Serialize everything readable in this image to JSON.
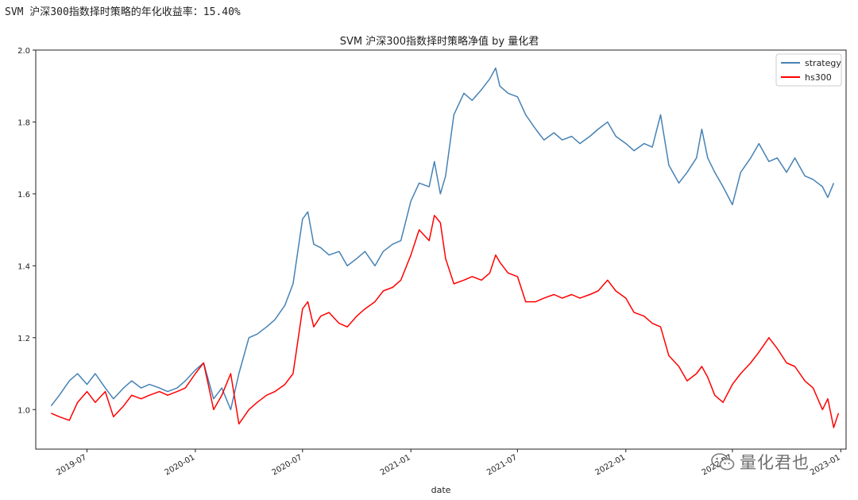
{
  "headline": "SVM 沪深300指数择时策略的年化收益率：15.40%",
  "watermark": {
    "text": "量化君也",
    "icon": "wechat-icon"
  },
  "chart_data": {
    "type": "line",
    "title": "SVM 沪深300指数择时策略净值  by 量化君",
    "xlabel": "date",
    "ylabel": "",
    "xlim": [
      "2019-04-05",
      "2023-01-10"
    ],
    "ylim": [
      0.89,
      2.0
    ],
    "yticks": [
      1.0,
      1.2,
      1.4,
      1.6,
      1.8,
      2.0
    ],
    "ytick_labels": [
      "1.0",
      "1.2",
      "1.4",
      "1.6",
      "1.8",
      "2.0"
    ],
    "xticks": [
      "2019-07-01",
      "2020-01-01",
      "2020-07-01",
      "2021-01-01",
      "2021-07-01",
      "2022-01-01",
      "2022-07-01",
      "2023-01-01"
    ],
    "xtick_labels": [
      "2019-07",
      "2020-01",
      "2020-07",
      "2021-01",
      "2021-07",
      "2022-01",
      "2022-07",
      "2023-01"
    ],
    "grid": false,
    "legend": "top-right",
    "series": [
      {
        "name": "strategy",
        "color": "#4682b4",
        "points": [
          [
            "2019-05-01",
            1.01
          ],
          [
            "2019-05-15",
            1.04
          ],
          [
            "2019-06-01",
            1.08
          ],
          [
            "2019-06-15",
            1.1
          ],
          [
            "2019-07-01",
            1.07
          ],
          [
            "2019-07-15",
            1.1
          ],
          [
            "2019-08-01",
            1.06
          ],
          [
            "2019-08-15",
            1.03
          ],
          [
            "2019-09-01",
            1.06
          ],
          [
            "2019-09-15",
            1.08
          ],
          [
            "2019-10-01",
            1.06
          ],
          [
            "2019-10-15",
            1.07
          ],
          [
            "2019-11-01",
            1.06
          ],
          [
            "2019-11-15",
            1.05
          ],
          [
            "2019-12-01",
            1.06
          ],
          [
            "2019-12-15",
            1.08
          ],
          [
            "2020-01-01",
            1.11
          ],
          [
            "2020-01-15",
            1.13
          ],
          [
            "2020-02-01",
            1.03
          ],
          [
            "2020-02-15",
            1.06
          ],
          [
            "2020-03-01",
            1.0
          ],
          [
            "2020-03-15",
            1.1
          ],
          [
            "2020-04-01",
            1.2
          ],
          [
            "2020-04-15",
            1.21
          ],
          [
            "2020-05-01",
            1.23
          ],
          [
            "2020-05-15",
            1.25
          ],
          [
            "2020-06-01",
            1.29
          ],
          [
            "2020-06-15",
            1.35
          ],
          [
            "2020-07-01",
            1.53
          ],
          [
            "2020-07-10",
            1.55
          ],
          [
            "2020-07-20",
            1.46
          ],
          [
            "2020-08-01",
            1.45
          ],
          [
            "2020-08-15",
            1.43
          ],
          [
            "2020-09-01",
            1.44
          ],
          [
            "2020-09-15",
            1.4
          ],
          [
            "2020-10-01",
            1.42
          ],
          [
            "2020-10-15",
            1.44
          ],
          [
            "2020-11-01",
            1.4
          ],
          [
            "2020-11-15",
            1.44
          ],
          [
            "2020-12-01",
            1.46
          ],
          [
            "2020-12-15",
            1.47
          ],
          [
            "2021-01-01",
            1.58
          ],
          [
            "2021-01-15",
            1.63
          ],
          [
            "2021-02-01",
            1.62
          ],
          [
            "2021-02-10",
            1.69
          ],
          [
            "2021-02-20",
            1.6
          ],
          [
            "2021-03-01",
            1.65
          ],
          [
            "2021-03-15",
            1.82
          ],
          [
            "2021-04-01",
            1.88
          ],
          [
            "2021-04-15",
            1.86
          ],
          [
            "2021-05-01",
            1.89
          ],
          [
            "2021-05-15",
            1.92
          ],
          [
            "2021-05-25",
            1.95
          ],
          [
            "2021-06-01",
            1.9
          ],
          [
            "2021-06-15",
            1.88
          ],
          [
            "2021-07-01",
            1.87
          ],
          [
            "2021-07-15",
            1.82
          ],
          [
            "2021-08-01",
            1.78
          ],
          [
            "2021-08-15",
            1.75
          ],
          [
            "2021-09-01",
            1.77
          ],
          [
            "2021-09-15",
            1.75
          ],
          [
            "2021-10-01",
            1.76
          ],
          [
            "2021-10-15",
            1.74
          ],
          [
            "2021-11-01",
            1.76
          ],
          [
            "2021-11-15",
            1.78
          ],
          [
            "2021-12-01",
            1.8
          ],
          [
            "2021-12-15",
            1.76
          ],
          [
            "2022-01-01",
            1.74
          ],
          [
            "2022-01-15",
            1.72
          ],
          [
            "2022-02-01",
            1.74
          ],
          [
            "2022-02-15",
            1.73
          ],
          [
            "2022-03-01",
            1.82
          ],
          [
            "2022-03-15",
            1.68
          ],
          [
            "2022-04-01",
            1.63
          ],
          [
            "2022-04-15",
            1.66
          ],
          [
            "2022-05-01",
            1.7
          ],
          [
            "2022-05-10",
            1.78
          ],
          [
            "2022-05-20",
            1.7
          ],
          [
            "2022-06-01",
            1.66
          ],
          [
            "2022-06-15",
            1.62
          ],
          [
            "2022-07-01",
            1.57
          ],
          [
            "2022-07-15",
            1.66
          ],
          [
            "2022-08-01",
            1.7
          ],
          [
            "2022-08-15",
            1.74
          ],
          [
            "2022-09-01",
            1.69
          ],
          [
            "2022-09-15",
            1.7
          ],
          [
            "2022-10-01",
            1.66
          ],
          [
            "2022-10-15",
            1.7
          ],
          [
            "2022-11-01",
            1.65
          ],
          [
            "2022-11-15",
            1.64
          ],
          [
            "2022-12-01",
            1.62
          ],
          [
            "2022-12-10",
            1.59
          ],
          [
            "2022-12-20",
            1.63
          ]
        ]
      },
      {
        "name": "hs300",
        "color": "#ff0000",
        "points": [
          [
            "2019-05-01",
            0.99
          ],
          [
            "2019-05-15",
            0.98
          ],
          [
            "2019-06-01",
            0.97
          ],
          [
            "2019-06-15",
            1.02
          ],
          [
            "2019-07-01",
            1.05
          ],
          [
            "2019-07-15",
            1.02
          ],
          [
            "2019-08-01",
            1.05
          ],
          [
            "2019-08-15",
            0.98
          ],
          [
            "2019-09-01",
            1.01
          ],
          [
            "2019-09-15",
            1.04
          ],
          [
            "2019-10-01",
            1.03
          ],
          [
            "2019-10-15",
            1.04
          ],
          [
            "2019-11-01",
            1.05
          ],
          [
            "2019-11-15",
            1.04
          ],
          [
            "2019-12-01",
            1.05
          ],
          [
            "2019-12-15",
            1.06
          ],
          [
            "2020-01-01",
            1.1
          ],
          [
            "2020-01-15",
            1.13
          ],
          [
            "2020-02-01",
            1.0
          ],
          [
            "2020-02-15",
            1.04
          ],
          [
            "2020-03-01",
            1.1
          ],
          [
            "2020-03-15",
            0.96
          ],
          [
            "2020-04-01",
            1.0
          ],
          [
            "2020-04-15",
            1.02
          ],
          [
            "2020-05-01",
            1.04
          ],
          [
            "2020-05-15",
            1.05
          ],
          [
            "2020-06-01",
            1.07
          ],
          [
            "2020-06-15",
            1.1
          ],
          [
            "2020-07-01",
            1.28
          ],
          [
            "2020-07-10",
            1.3
          ],
          [
            "2020-07-20",
            1.23
          ],
          [
            "2020-08-01",
            1.26
          ],
          [
            "2020-08-15",
            1.27
          ],
          [
            "2020-09-01",
            1.24
          ],
          [
            "2020-09-15",
            1.23
          ],
          [
            "2020-10-01",
            1.26
          ],
          [
            "2020-10-15",
            1.28
          ],
          [
            "2020-11-01",
            1.3
          ],
          [
            "2020-11-15",
            1.33
          ],
          [
            "2020-12-01",
            1.34
          ],
          [
            "2020-12-15",
            1.36
          ],
          [
            "2021-01-01",
            1.43
          ],
          [
            "2021-01-15",
            1.5
          ],
          [
            "2021-02-01",
            1.47
          ],
          [
            "2021-02-10",
            1.54
          ],
          [
            "2021-02-20",
            1.52
          ],
          [
            "2021-03-01",
            1.42
          ],
          [
            "2021-03-15",
            1.35
          ],
          [
            "2021-04-01",
            1.36
          ],
          [
            "2021-04-15",
            1.37
          ],
          [
            "2021-05-01",
            1.36
          ],
          [
            "2021-05-15",
            1.38
          ],
          [
            "2021-05-25",
            1.43
          ],
          [
            "2021-06-01",
            1.41
          ],
          [
            "2021-06-15",
            1.38
          ],
          [
            "2021-07-01",
            1.37
          ],
          [
            "2021-07-15",
            1.3
          ],
          [
            "2021-08-01",
            1.3
          ],
          [
            "2021-08-15",
            1.31
          ],
          [
            "2021-09-01",
            1.32
          ],
          [
            "2021-09-15",
            1.31
          ],
          [
            "2021-10-01",
            1.32
          ],
          [
            "2021-10-15",
            1.31
          ],
          [
            "2021-11-01",
            1.32
          ],
          [
            "2021-11-15",
            1.33
          ],
          [
            "2021-12-01",
            1.36
          ],
          [
            "2021-12-15",
            1.33
          ],
          [
            "2022-01-01",
            1.31
          ],
          [
            "2022-01-15",
            1.27
          ],
          [
            "2022-02-01",
            1.26
          ],
          [
            "2022-02-15",
            1.24
          ],
          [
            "2022-03-01",
            1.23
          ],
          [
            "2022-03-15",
            1.15
          ],
          [
            "2022-04-01",
            1.12
          ],
          [
            "2022-04-15",
            1.08
          ],
          [
            "2022-05-01",
            1.1
          ],
          [
            "2022-05-10",
            1.12
          ],
          [
            "2022-05-20",
            1.09
          ],
          [
            "2022-06-01",
            1.04
          ],
          [
            "2022-06-15",
            1.02
          ],
          [
            "2022-07-01",
            1.07
          ],
          [
            "2022-07-15",
            1.1
          ],
          [
            "2022-08-01",
            1.13
          ],
          [
            "2022-08-15",
            1.16
          ],
          [
            "2022-09-01",
            1.2
          ],
          [
            "2022-09-15",
            1.17
          ],
          [
            "2022-10-01",
            1.13
          ],
          [
            "2022-10-15",
            1.12
          ],
          [
            "2022-11-01",
            1.08
          ],
          [
            "2022-11-15",
            1.06
          ],
          [
            "2022-12-01",
            1.0
          ],
          [
            "2022-12-10",
            1.03
          ],
          [
            "2022-12-20",
            0.95
          ],
          [
            "2022-12-28",
            0.99
          ]
        ]
      }
    ]
  }
}
